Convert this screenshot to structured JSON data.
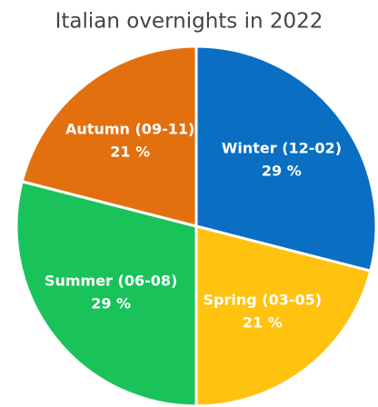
{
  "chart_data": {
    "type": "pie",
    "title": "Italian overnights in 2022",
    "categories": [
      "Winter (12-02)",
      "Spring (03-05)",
      "Summer (06-08)",
      "Autumn (09-11)"
    ],
    "values": [
      29,
      21,
      29,
      21
    ],
    "value_labels": [
      "29 %",
      "21 %",
      "29 %",
      "21 %"
    ],
    "colors": [
      "#0a6fc2",
      "#ffc20e",
      "#19c35a",
      "#e2700f"
    ]
  }
}
